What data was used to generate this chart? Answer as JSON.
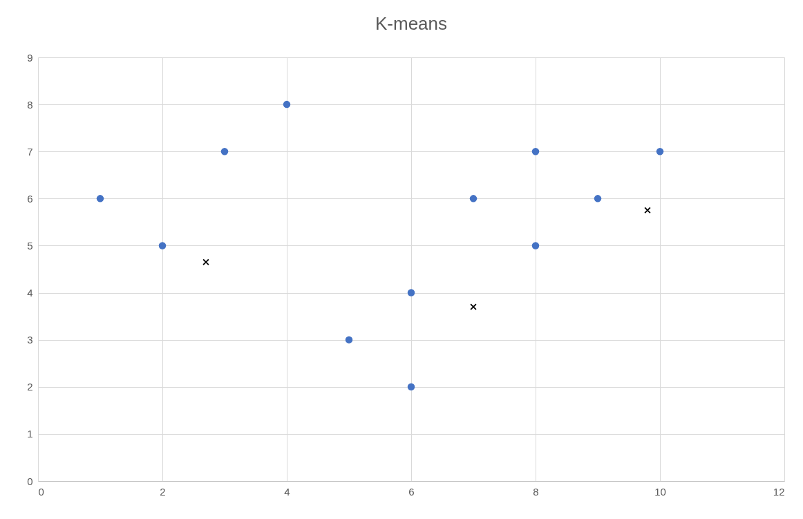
{
  "chart_data": {
    "type": "scatter",
    "title": "K-means",
    "series": [
      {
        "color": "#4472c4",
        "marker": "circle",
        "x": [
          1,
          2,
          3,
          4,
          5,
          6,
          6,
          7,
          8,
          8,
          9,
          10
        ],
        "values": [
          6,
          5,
          7,
          8,
          3,
          4,
          2,
          6,
          7,
          5,
          6,
          7
        ]
      },
      {
        "color": "#000000",
        "marker": "cross",
        "x": [
          2.7,
          7.0,
          9.8
        ],
        "values": [
          4.65,
          3.7,
          5.75
        ]
      }
    ],
    "xlim": [
      0,
      12
    ],
    "xticks": [
      0,
      2,
      4,
      6,
      8,
      10,
      12
    ],
    "ylim": [
      0,
      9
    ],
    "yticks": [
      0,
      1,
      2,
      3,
      4,
      5,
      6,
      7,
      8,
      9
    ],
    "grid": true
  }
}
